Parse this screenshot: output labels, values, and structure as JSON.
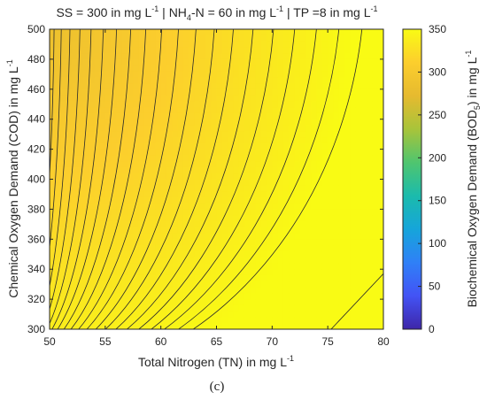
{
  "chart_data": {
    "type": "heatmap",
    "title": {
      "p1": "SS = 300 in mg L",
      "p1_sup": "-1",
      "p2": " | NH",
      "p2_sub": "4",
      "p3": "-N = 60 in mg L",
      "p3_sup": "-1",
      "p4": " | TP =8 in mg L",
      "p4_sup": "-1"
    },
    "xlabel": {
      "main": "Total Nitrogen (TN) in mg L",
      "sup": "-1"
    },
    "ylabel": {
      "main": "Chemical Oxygen Demand (COD) in mg L",
      "sup": "-1"
    },
    "colorbar_label": {
      "pre": "Biochemical Oxygen Demand (BOD",
      "sub": "5",
      "post": ") in mg L",
      "sup": "-1"
    },
    "panel_label": "(c)",
    "x_range": [
      50,
      80
    ],
    "y_range": [
      300,
      500
    ],
    "x_ticks": [
      50,
      55,
      60,
      65,
      70,
      75,
      80
    ],
    "y_ticks": [
      300,
      320,
      340,
      360,
      380,
      400,
      420,
      440,
      460,
      480,
      500
    ],
    "colorbar_range": [
      0,
      350
    ],
    "colorbar_ticks": [
      0,
      50,
      100,
      150,
      200,
      250,
      300,
      350
    ],
    "colormap": [
      "#3e26a8",
      "#4353f5",
      "#2f80f7",
      "#16a5da",
      "#1bbbac",
      "#4fc56f",
      "#a8c43a",
      "#e6ba2f",
      "#fcce2d",
      "#f9fb14"
    ],
    "contour_levels_approx": 21,
    "contour_color": "#2a2a2a",
    "grid": false,
    "legend": "colorbar-right"
  }
}
